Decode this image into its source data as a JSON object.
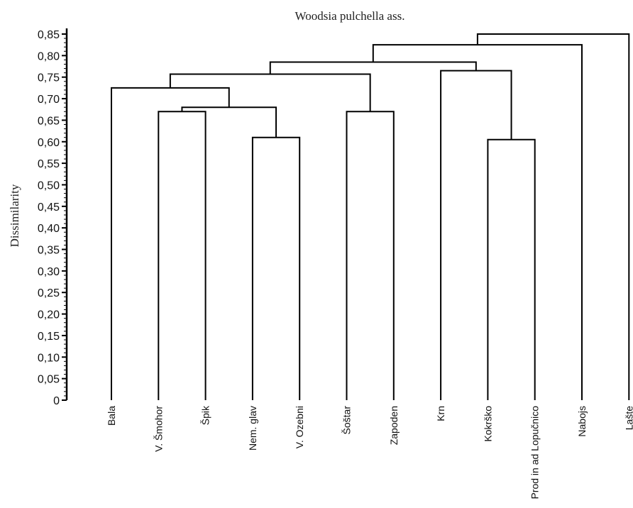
{
  "chart_data": {
    "type": "dendrogram",
    "title": "Woodsia pulchella ass.",
    "ylabel": "Dissimilarity",
    "ylim": [
      0,
      0.85
    ],
    "yticks": [
      "0",
      "0,05",
      "0,10",
      "0,15",
      "0,20",
      "0,25",
      "0,30",
      "0,35",
      "0,40",
      "0,45",
      "0,50",
      "0,55",
      "0,60",
      "0,65",
      "0,70",
      "0,75",
      "0,80",
      "0,85"
    ],
    "leaves": [
      "Bala",
      "V. Šmohor",
      "Špik",
      "Nem. glav",
      "V. Ozebni",
      "Šoštar",
      "Zapoden",
      "Krn",
      "Kokrško",
      "Prod in ad Lopučnico",
      "Nabojs",
      "Lašte"
    ],
    "merges": [
      {
        "a": "Nem. glav",
        "b": "V. Ozebni",
        "height": 0.61
      },
      {
        "a": "Kokrško",
        "b": "Prod in ad Lopučnico",
        "height": 0.605
      },
      {
        "a": "V. Šmohor",
        "b": "Špik",
        "height": 0.67
      },
      {
        "a": "Šoštar",
        "b": "Zapoden",
        "height": 0.67
      },
      {
        "a": "V. Šmohor+Špik",
        "b": "Nem. glav+V. Ozebni",
        "height": 0.68
      },
      {
        "a": "Bala",
        "b": "V. Šmohor+Špik+Nem. glav+V. Ozebni",
        "height": 0.725
      },
      {
        "a": "Bala group",
        "b": "Šoštar+Zapoden",
        "height": 0.757
      },
      {
        "a": "Krn",
        "b": "Kokrško+Prod in ad Lopučnico",
        "height": 0.765
      },
      {
        "a": "Bala…Zapoden",
        "b": "Krn…Prod in ad Lopučnico",
        "height": 0.785
      },
      {
        "a": "Bala…Prod in ad Lopučnico",
        "b": "Nabojs",
        "height": 0.825
      },
      {
        "a": "Bala…Nabojs",
        "b": "Lašte",
        "height": 0.85
      }
    ]
  }
}
